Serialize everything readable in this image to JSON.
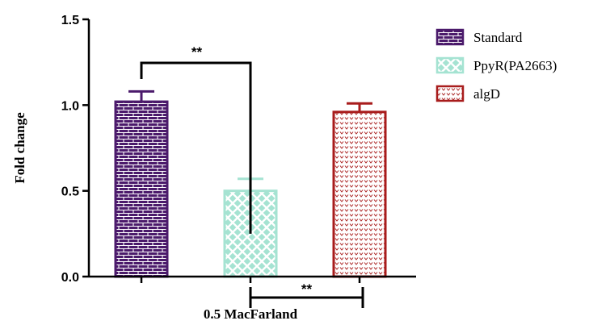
{
  "chart_data": {
    "type": "bar",
    "title": "",
    "xlabel": "0.5 MacFarland",
    "ylabel": "Fold change",
    "ylim": [
      0,
      1.5
    ],
    "yticks": [
      "0.0",
      "0.5",
      "1.0",
      "1.5"
    ],
    "grid": false,
    "legend_position": "top-right",
    "series": [
      {
        "name": "Standard",
        "value": 1.02,
        "error": 0.06,
        "color": "#4b1a6b",
        "pattern": "brick"
      },
      {
        "name": "PpyR(PA2663)",
        "value": 0.5,
        "error": 0.07,
        "color": "#a5e3d2",
        "pattern": "diamond"
      },
      {
        "name": "algD",
        "value": 0.96,
        "error": 0.05,
        "color": "#a81c1c",
        "pattern": "chevron"
      }
    ],
    "annotations": [
      {
        "label": "**",
        "between": [
          "Standard",
          "PpyR(PA2663)"
        ]
      },
      {
        "label": "**",
        "between": [
          "PpyR(PA2663)",
          "algD"
        ]
      }
    ]
  }
}
